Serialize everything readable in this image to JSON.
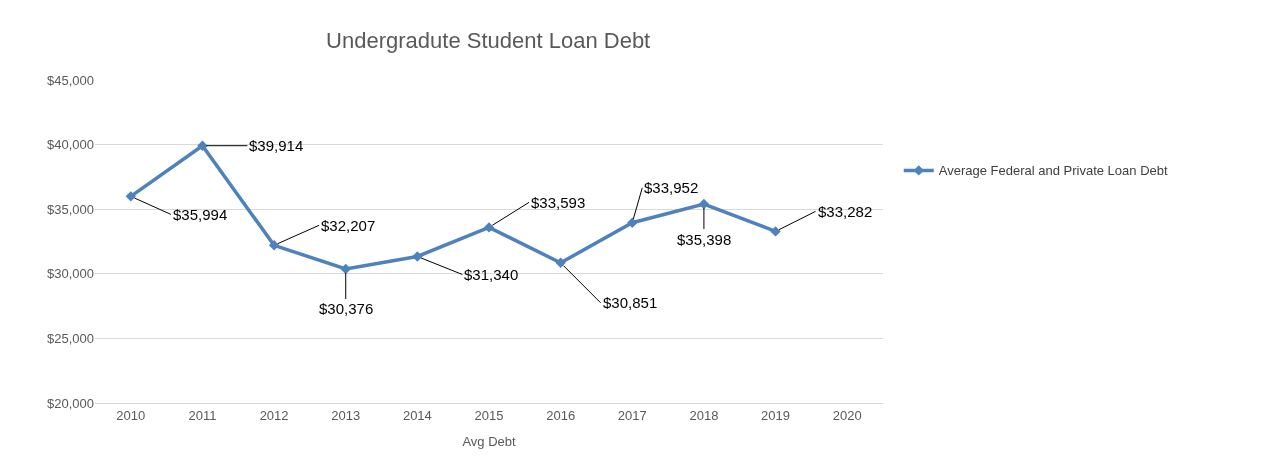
{
  "chart_data": {
    "type": "line",
    "title": "Undergradute Student Loan Debt",
    "xlabel": "Avg Debt",
    "categories": [
      "2010",
      "2011",
      "2012",
      "2013",
      "2014",
      "2015",
      "2016",
      "2017",
      "2018",
      "2019",
      "2020"
    ],
    "series": [
      {
        "name": "Average Federal and Private Loan Debt",
        "color": "#4f81bd",
        "values": [
          35994,
          39914,
          32207,
          30376,
          31340,
          33593,
          30851,
          33952,
          35398,
          33282,
          null
        ],
        "value_labels": [
          "$35,994",
          "$39,914",
          "$32,207",
          "$30,376",
          "$31,340",
          "$33,593",
          "$30,851",
          "$33,952",
          "$35,398",
          "$33,282",
          null
        ]
      }
    ],
    "ylim": [
      20000,
      45000
    ],
    "yticks": [
      {
        "value": 20000,
        "label": "$20,000"
      },
      {
        "value": 25000,
        "label": "$25,000"
      },
      {
        "value": 30000,
        "label": "$30,000"
      },
      {
        "value": 35000,
        "label": "$35,000"
      },
      {
        "value": 40000,
        "label": "$40,000"
      },
      {
        "value": 45000,
        "label": "$45,000"
      }
    ],
    "grid": "y",
    "legend": "right",
    "marker": "diamond",
    "line_style": "solid"
  }
}
